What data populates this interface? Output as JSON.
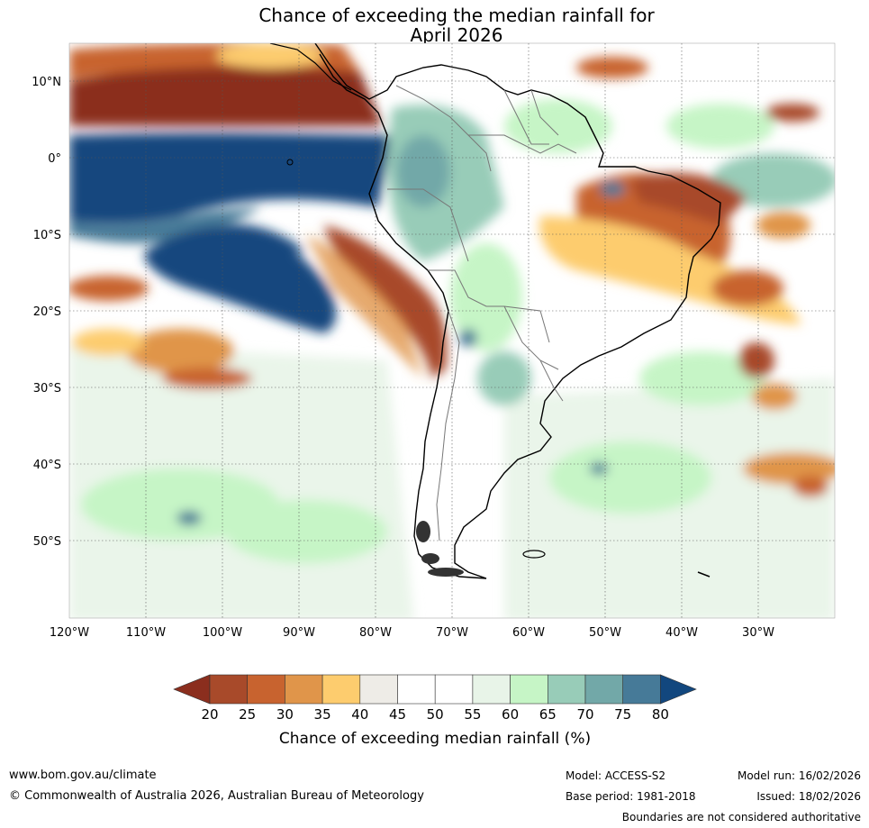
{
  "title": {
    "line1": "Chance of exceeding the median rainfall for",
    "line2": "April 2026"
  },
  "map": {
    "lat_labels": [
      "10°N",
      "0°",
      "10°S",
      "20°S",
      "30°S",
      "40°S",
      "50°S"
    ],
    "lon_labels": [
      "120°W",
      "110°W",
      "100°W",
      "90°W",
      "80°W",
      "70°W",
      "60°W",
      "50°W",
      "40°W",
      "30°W"
    ]
  },
  "legend": {
    "ticks": [
      "20",
      "25",
      "30",
      "35",
      "40",
      "45",
      "50",
      "55",
      "60",
      "65",
      "70",
      "75",
      "80"
    ],
    "colors": [
      "#8b2e1e",
      "#a84a2a",
      "#c8632f",
      "#e0954a",
      "#fdcc6e",
      "#eeece7",
      "#ffffff",
      "#ffffff",
      "#e8f4e8",
      "#c6f5c6",
      "#98ccb8",
      "#72a8a8",
      "#467a98",
      "#12477e"
    ],
    "label": "Chance of exceeding median rainfall (%)"
  },
  "footer": {
    "url": "www.bom.gov.au/climate",
    "copyright": "© Commonwealth of Australia 2026, Australian Bureau of Meteorology",
    "model": "Model: ACCESS-S2",
    "base_period": "Base period: 1981-2018",
    "model_run": "Model run: 16/02/2026",
    "issued": "Issued: 18/02/2026",
    "disclaimer": "Boundaries are not considered authoritative"
  }
}
